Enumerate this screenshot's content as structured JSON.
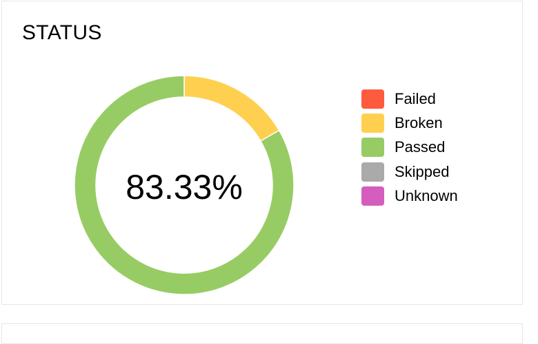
{
  "panel": {
    "title": "STATUS"
  },
  "chart_data": {
    "type": "pie",
    "donut": true,
    "title": "STATUS",
    "center_label": "83.33%",
    "legend_position": "right",
    "categories": [
      "Failed",
      "Broken",
      "Passed",
      "Skipped",
      "Unknown"
    ],
    "values": [
      0,
      1,
      5,
      0,
      0
    ],
    "colors": [
      "#fd5a3e",
      "#ffd050",
      "#97cc64",
      "#aaaaaa",
      "#d35ebe"
    ]
  }
}
